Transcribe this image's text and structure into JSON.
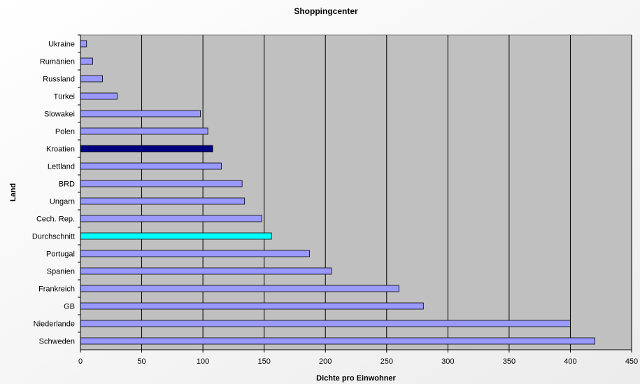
{
  "chart_data": {
    "type": "bar",
    "orientation": "horizontal",
    "title": "Shoppingcenter",
    "xlabel": "Dichte pro Einwohner",
    "ylabel": "Land",
    "xlim": [
      0,
      450
    ],
    "xticks": [
      "0",
      "50",
      "100",
      "150",
      "200",
      "250",
      "300",
      "350",
      "400",
      "450"
    ],
    "grid": "vertical",
    "categories": [
      "Ukraine",
      "Rumänien",
      "Russland",
      "Türkei",
      "Slowakei",
      "Polen",
      "Kroatien",
      "Lettland",
      "BRD",
      "Ungarn",
      "Cech. Rep.",
      "Durchschnitt",
      "Portugal",
      "Spanien",
      "Frankreich",
      "GB",
      "Niederlande",
      "Schweden"
    ],
    "values": [
      5,
      10,
      18,
      30,
      98,
      104,
      108,
      115,
      132,
      134,
      148,
      156,
      187,
      205,
      260,
      280,
      400,
      420
    ],
    "colors": {
      "default": "#9999ff",
      "highlight": "#000080",
      "average": "#00ffff",
      "plot_background": "#c0c0c0",
      "border": "#000000"
    },
    "highlighted": [
      "Kroatien"
    ],
    "average_category": "Durchschnitt"
  }
}
